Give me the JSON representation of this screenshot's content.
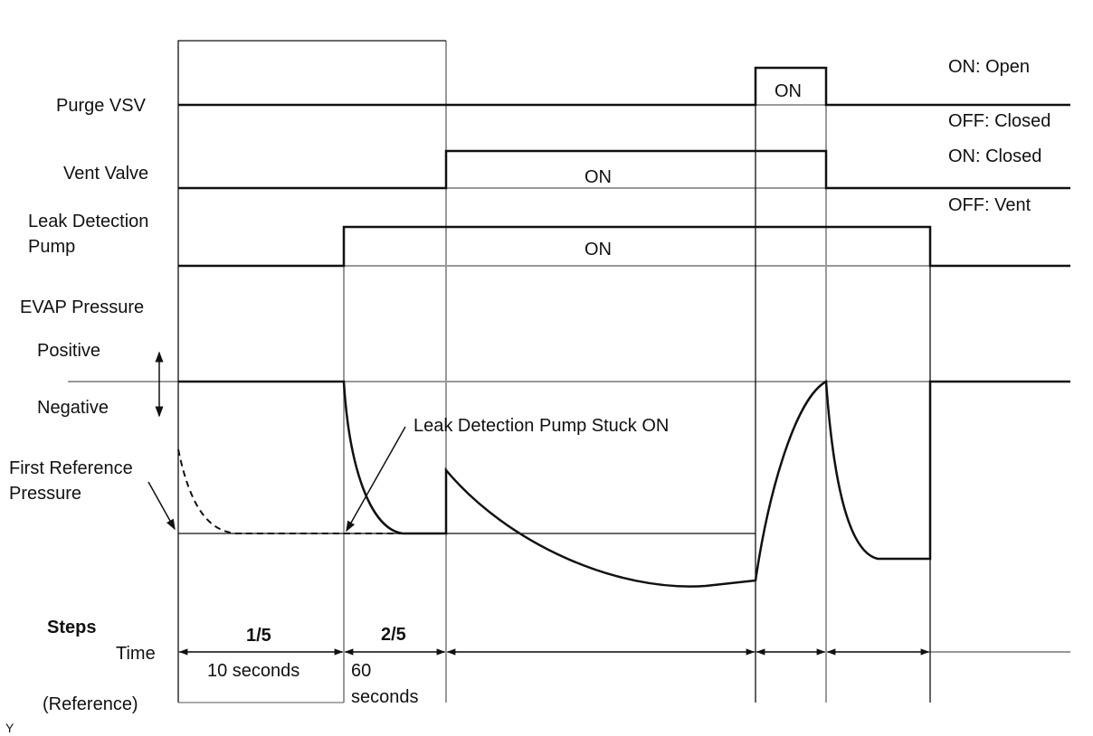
{
  "signals": {
    "purge_vsv": {
      "label": "Purge VSV",
      "on_label": "ON",
      "state_on": "ON: Open",
      "state_off": "OFF: Closed"
    },
    "vent_valve": {
      "label": "Vent Valve",
      "on_label": "ON",
      "state_on": "ON: Closed",
      "state_off": "OFF: Vent"
    },
    "pump": {
      "label_line1": "Leak Detection",
      "label_line2": "Pump",
      "on_label": "ON"
    },
    "evap": {
      "label": "EVAP Pressure",
      "positive": "Positive",
      "negative": "Negative"
    }
  },
  "annotations": {
    "first_ref_line1": "First Reference",
    "first_ref_line2": "Pressure",
    "stuck_on": "Leak Detection Pump Stuck ON"
  },
  "steps": {
    "label": "Steps",
    "time_label": "Time",
    "reference_label": "(Reference)",
    "step1": "1/5",
    "step2": "2/5",
    "time1": "10 seconds",
    "time2_line1": "60",
    "time2_line2": "seconds"
  },
  "corner_mark": "Y",
  "colors": {
    "line": "#111111",
    "guide": "#999999"
  }
}
